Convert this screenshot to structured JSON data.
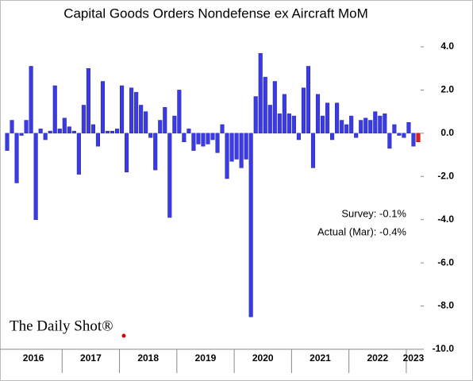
{
  "chart_data": {
    "type": "bar",
    "title": "Capital Goods Orders Nondefense ex Aircraft MoM",
    "categories": [
      null,
      null,
      null,
      null,
      null,
      null,
      null,
      null,
      null,
      null,
      null,
      null,
      null,
      null,
      null,
      null,
      null,
      null,
      null,
      null,
      null,
      null,
      null,
      null,
      null,
      null,
      null,
      null,
      null,
      null,
      null,
      null,
      null,
      null,
      null,
      null,
      null,
      null,
      null,
      null,
      null,
      null,
      null,
      null,
      null,
      null,
      null,
      null,
      null,
      null,
      null,
      null,
      null,
      null,
      null,
      null,
      null,
      null,
      null,
      null,
      null,
      null,
      null,
      null,
      null,
      null,
      null,
      null,
      null,
      null,
      null,
      null,
      null,
      null,
      null,
      null,
      null,
      null,
      null,
      null,
      null,
      null,
      null,
      null,
      null,
      null,
      null
    ],
    "values": [
      -0.8,
      0.6,
      -2.3,
      -0.1,
      0.6,
      3.1,
      -4.0,
      0.2,
      -0.3,
      0.1,
      2.2,
      0.2,
      0.7,
      0.3,
      0.1,
      -1.9,
      1.3,
      3.0,
      0.4,
      -0.6,
      2.4,
      0.1,
      0.1,
      0.2,
      2.2,
      -1.8,
      2.1,
      1.9,
      1.3,
      1.0,
      -0.2,
      -1.7,
      0.6,
      1.2,
      -3.9,
      0.8,
      2.0,
      -0.4,
      0.2,
      -0.8,
      -0.5,
      -0.6,
      -0.5,
      -0.3,
      -0.9,
      0.4,
      -2.1,
      -1.3,
      -1.2,
      -1.6,
      -1.2,
      -8.5,
      1.7,
      3.7,
      2.6,
      1.3,
      2.4,
      0.9,
      1.8,
      0.9,
      0.8,
      -0.3,
      2.1,
      3.1,
      -1.6,
      1.8,
      0.8,
      1.4,
      -0.3,
      1.4,
      0.6,
      0.4,
      0.8,
      -0.2,
      0.6,
      0.7,
      0.6,
      1.0,
      0.8,
      0.9,
      -0.7,
      0.4,
      -0.1,
      -0.2,
      0.5,
      -0.6,
      -0.4
    ],
    "color": "#3b3be6",
    "last_color": "#e0201c",
    "year_labels": [
      "2016",
      "2017",
      "2018",
      "2019",
      "2020",
      "2021",
      "2022",
      "2023"
    ],
    "ylim": [
      -10,
      4
    ],
    "yticks": [
      {
        "value": 4,
        "label": "4.0"
      },
      {
        "value": 2,
        "label": "2.0"
      },
      {
        "value": 0,
        "label": "0.0"
      },
      {
        "value": -2,
        "label": "-2.0"
      },
      {
        "value": -4,
        "label": "-4.0"
      },
      {
        "value": -6,
        "label": "-6.0"
      },
      {
        "value": -8,
        "label": "-8.0"
      },
      {
        "value": -10,
        "label": "-10.0"
      }
    ],
    "annotations": [
      "Survey:  -0.1%",
      "Actual (Mar):  -0.4%"
    ],
    "source": "The Daily Shot®"
  }
}
